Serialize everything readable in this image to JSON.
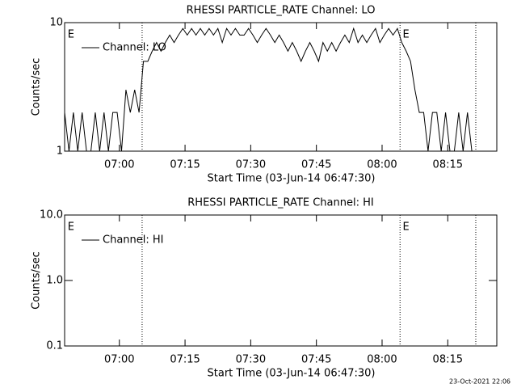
{
  "chart_data": [
    {
      "type": "line",
      "title": "RHESSI PARTICLE_RATE Channel: LO",
      "xlabel": "Start Time (03-Jun-14 06:47:30)",
      "ylabel": "Counts/sec",
      "x": [
        0,
        1,
        2,
        3,
        4,
        5,
        6,
        7,
        8,
        9,
        10,
        11,
        12,
        13,
        14,
        15,
        16,
        17,
        18,
        19,
        20,
        21,
        22,
        23,
        24,
        25,
        26,
        27,
        28,
        29,
        30,
        31,
        32,
        33,
        34,
        35,
        36,
        37,
        38,
        39,
        40,
        41,
        42,
        43,
        44,
        45,
        46,
        47,
        48,
        49,
        50,
        51,
        52,
        53,
        54,
        55,
        56,
        57,
        58,
        59,
        60,
        61,
        62,
        63,
        64,
        65,
        66,
        67,
        68,
        69,
        70,
        71,
        72,
        73,
        74,
        75,
        76,
        77,
        78,
        79,
        80,
        81,
        82,
        83,
        84,
        85,
        86,
        87,
        88,
        89,
        90,
        91,
        92,
        93
      ],
      "series": [
        {
          "name": "Channel: LO",
          "color": "#000000",
          "values": [
            2,
            1,
            2,
            1,
            2,
            1,
            1,
            2,
            1,
            2,
            1,
            2,
            2,
            1,
            3,
            2,
            3,
            2,
            5,
            5,
            6,
            7,
            6,
            7,
            8,
            7,
            8,
            9,
            8,
            9,
            8,
            9,
            8,
            9,
            8,
            9,
            7,
            9,
            8,
            9,
            8,
            8,
            9,
            8,
            7,
            8,
            9,
            8,
            7,
            8,
            7,
            6,
            7,
            6,
            5,
            6,
            7,
            6,
            5,
            7,
            6,
            7,
            6,
            7,
            8,
            7,
            9,
            7,
            8,
            7,
            8,
            9,
            7,
            8,
            9,
            8,
            9,
            7,
            6,
            5,
            3,
            2,
            2,
            1,
            2,
            2,
            1,
            2,
            1,
            1,
            2,
            1,
            2,
            1
          ]
        }
      ],
      "xlim": [
        0,
        98.7
      ],
      "xticks": [
        {
          "value": 12.5,
          "label": "07:00"
        },
        {
          "value": 27.5,
          "label": "07:15"
        },
        {
          "value": 42.5,
          "label": "07:30"
        },
        {
          "value": 57.5,
          "label": "07:45"
        },
        {
          "value": 72.5,
          "label": "08:00"
        },
        {
          "value": 87.5,
          "label": "08:15"
        }
      ],
      "ylim": [
        1,
        10
      ],
      "yticks": [
        10,
        1
      ],
      "log_y": true,
      "legend": "upper left",
      "vlines": [
        17.7,
        76.6,
        93.9
      ],
      "markers": [
        {
          "x": 0.7,
          "label": "E"
        },
        {
          "x": 77.2,
          "label": "E"
        }
      ]
    },
    {
      "type": "line",
      "title": "RHESSI PARTICLE_RATE Channel: HI",
      "xlabel": "Start Time (03-Jun-14 06:47:30)",
      "ylabel": "Counts/sec",
      "x": [],
      "series": [
        {
          "name": "Channel: HI",
          "color": "#000000",
          "values": []
        }
      ],
      "xlim": [
        0,
        98.7
      ],
      "xticks": [
        {
          "value": 12.5,
          "label": "07:00"
        },
        {
          "value": 27.5,
          "label": "07:15"
        },
        {
          "value": 42.5,
          "label": "07:30"
        },
        {
          "value": 57.5,
          "label": "07:45"
        },
        {
          "value": 72.5,
          "label": "08:00"
        },
        {
          "value": 87.5,
          "label": "08:15"
        }
      ],
      "ylim": [
        0.1,
        10
      ],
      "yticks": [
        {
          "value": 10,
          "label": "10.0"
        },
        {
          "value": 1,
          "label": "1.0"
        },
        0.1
      ],
      "log_y": true,
      "legend": "upper left",
      "vlines": [
        17.7,
        76.6,
        93.9
      ],
      "markers": [
        {
          "x": 0.7,
          "label": "E"
        },
        {
          "x": 77.2,
          "label": "E"
        }
      ]
    }
  ],
  "footer": "23-Oct-2021 22:06"
}
